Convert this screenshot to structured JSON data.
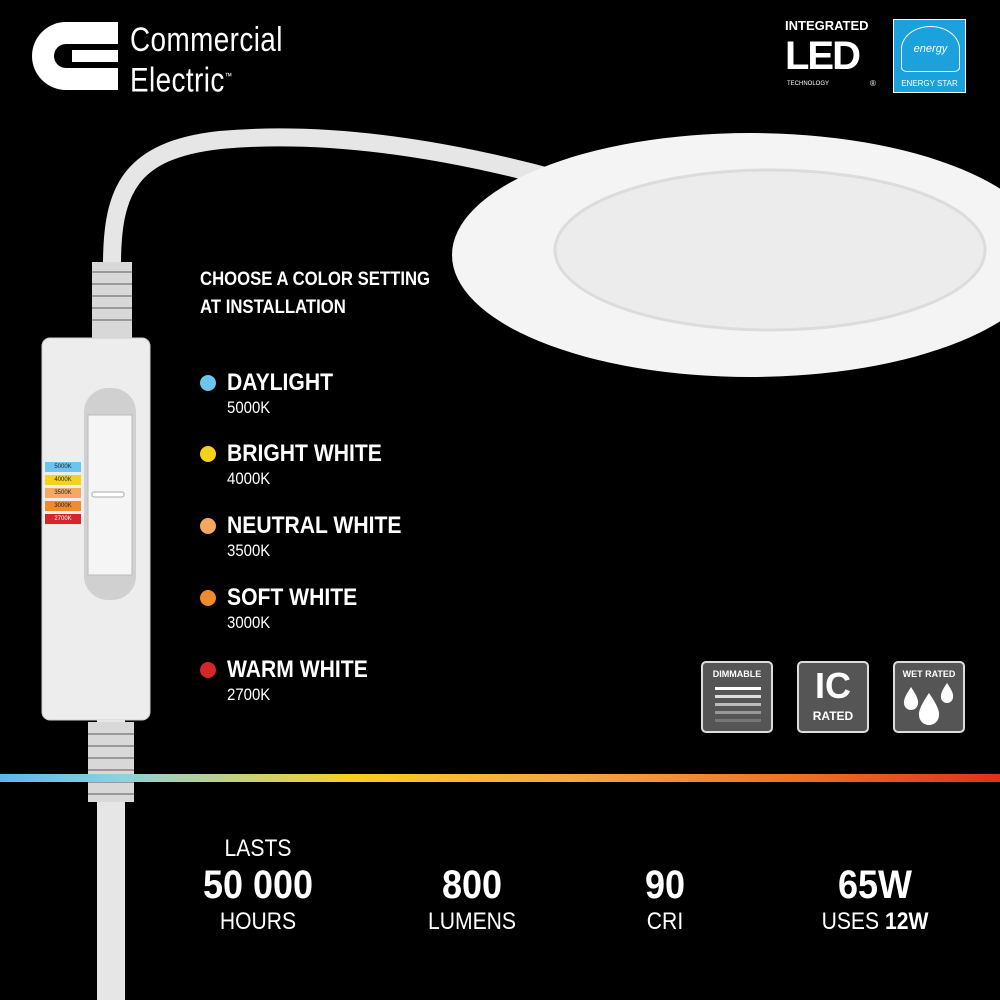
{
  "brand": {
    "line1": "Commercial",
    "line2": "Electric",
    "tm": "™"
  },
  "led_badge": {
    "top": "INTEGRATED",
    "big": "LED",
    "small": "TECHNOLOGY",
    "reg": "®"
  },
  "energy_star": {
    "script": "energy",
    "label": "ENERGY STAR",
    "color": "#1ba1dc"
  },
  "heading": {
    "line1": "CHOOSE A COLOR SETTING",
    "line2": "AT INSTALLATION"
  },
  "options": [
    {
      "name": "DAYLIGHT",
      "kelvin": "5000K",
      "color": "#6cc4ef"
    },
    {
      "name": "BRIGHT WHITE",
      "kelvin": "4000K",
      "color": "#f5d21c"
    },
    {
      "name": "NEUTRAL WHITE",
      "kelvin": "3500K",
      "color": "#f4a862"
    },
    {
      "name": "SOFT WHITE",
      "kelvin": "3000K",
      "color": "#f08a2a"
    },
    {
      "name": "WARM WHITE",
      "kelvin": "2700K",
      "color": "#d7262a"
    }
  ],
  "switch_labels": [
    "5000K",
    "4000K",
    "3500K",
    "3000K",
    "2700K"
  ],
  "badges": {
    "dimmable": "DIMMABLE",
    "ic_big": "IC",
    "ic_small": "RATED",
    "wet": "WET RATED"
  },
  "stats": [
    {
      "top": "LASTS",
      "big": "50 000",
      "bottom": "HOURS"
    },
    {
      "top": "",
      "big": "800",
      "bottom": "LUMENS"
    },
    {
      "top": "",
      "big": "90",
      "bottom": "CRI"
    },
    {
      "top": "",
      "big": "65W",
      "bottom_prefix": "USES ",
      "bottom_bold": "12W"
    }
  ]
}
